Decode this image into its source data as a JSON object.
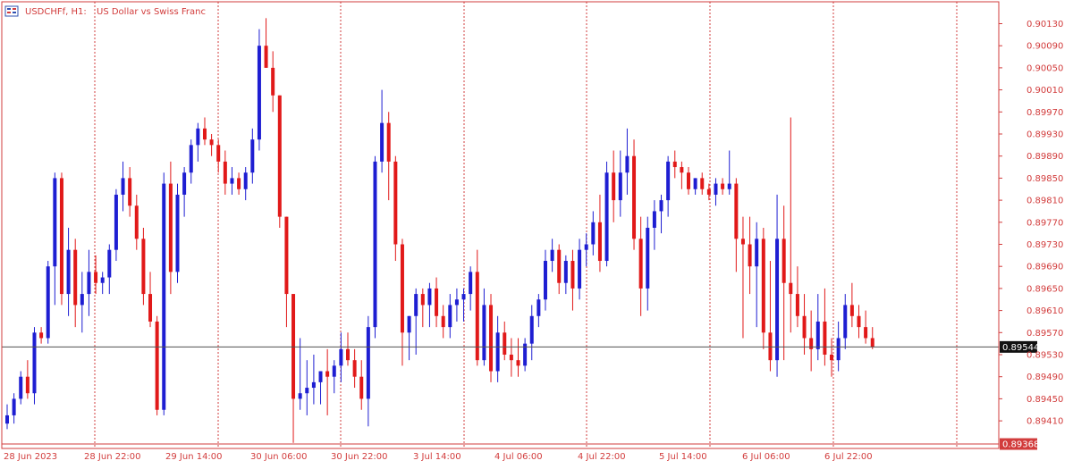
{
  "header": {
    "symbol_timeframe": "USDCHFf, H1:",
    "description": "US Dollar vs Swiss Franc"
  },
  "price_labels": {
    "current": "0.89544",
    "lower": "0.89368"
  },
  "colors": {
    "bull": "#1e1ed2",
    "bear": "#e11919",
    "grid": "#d23c3c",
    "frame": "#d23c3c",
    "text": "#d23c3c",
    "current_line": "#505050",
    "current_label_bg": "#111111",
    "lower_label_bg": "#d23c3c"
  },
  "chart_data": {
    "type": "candlestick",
    "symbol": "USDCHFf",
    "timeframe": "H1",
    "ylim": [
      0.8935,
      0.9015
    ],
    "y_ticks": [
      "0.90130",
      "0.90090",
      "0.90050",
      "0.90010",
      "0.89970",
      "0.89930",
      "0.89890",
      "0.89850",
      "0.89810",
      "0.89770",
      "0.89730",
      "0.89690",
      "0.89650",
      "0.89610",
      "0.89570",
      "0.89530",
      "0.89490",
      "0.89450",
      "0.89410"
    ],
    "x_labels": [
      "28 Jun 2023",
      "28 Jun 22:00",
      "29 Jun 14:00",
      "30 Jun 06:00",
      "30 Jun 22:00",
      "3 Jul 14:00",
      "4 Jul 06:00",
      "4 Jul 22:00",
      "5 Jul 14:00",
      "6 Jul 06:00",
      "6 Jul 22:00"
    ],
    "grid": true,
    "current_price": 0.89544,
    "lower_level": 0.89368,
    "candles": [
      [
        0.89405,
        0.8944,
        0.89395,
        0.8942
      ],
      [
        0.8942,
        0.8946,
        0.89405,
        0.8945
      ],
      [
        0.8945,
        0.895,
        0.8944,
        0.8949
      ],
      [
        0.8949,
        0.8952,
        0.8945,
        0.8946
      ],
      [
        0.8946,
        0.8958,
        0.8944,
        0.8957
      ],
      [
        0.8957,
        0.8958,
        0.8955,
        0.8956
      ],
      [
        0.8956,
        0.897,
        0.8955,
        0.8969
      ],
      [
        0.8969,
        0.8986,
        0.8962,
        0.8985
      ],
      [
        0.8985,
        0.8986,
        0.8962,
        0.8964
      ],
      [
        0.8964,
        0.8976,
        0.896,
        0.8972
      ],
      [
        0.8972,
        0.8974,
        0.8958,
        0.8962
      ],
      [
        0.8962,
        0.8968,
        0.8957,
        0.8964
      ],
      [
        0.8964,
        0.8972,
        0.896,
        0.8968
      ],
      [
        0.8968,
        0.8971,
        0.8964,
        0.8966
      ],
      [
        0.8966,
        0.8968,
        0.8964,
        0.8967
      ],
      [
        0.8967,
        0.8973,
        0.8964,
        0.8972
      ],
      [
        0.8972,
        0.8983,
        0.897,
        0.8982
      ],
      [
        0.8982,
        0.8988,
        0.8979,
        0.8985
      ],
      [
        0.8985,
        0.8987,
        0.8978,
        0.898
      ],
      [
        0.898,
        0.8982,
        0.8972,
        0.8974
      ],
      [
        0.8974,
        0.8976,
        0.8962,
        0.8964
      ],
      [
        0.8964,
        0.8968,
        0.8958,
        0.8959
      ],
      [
        0.8959,
        0.896,
        0.8942,
        0.8943
      ],
      [
        0.8943,
        0.8986,
        0.8942,
        0.8984
      ],
      [
        0.8984,
        0.8988,
        0.8964,
        0.8968
      ],
      [
        0.8968,
        0.8984,
        0.8966,
        0.8982
      ],
      [
        0.8982,
        0.8987,
        0.8978,
        0.8986
      ],
      [
        0.8986,
        0.8992,
        0.8984,
        0.8991
      ],
      [
        0.8991,
        0.8995,
        0.8988,
        0.8994
      ],
      [
        0.8994,
        0.8996,
        0.8991,
        0.8992
      ],
      [
        0.8992,
        0.8993,
        0.8989,
        0.8991
      ],
      [
        0.8991,
        0.8992,
        0.8986,
        0.8988
      ],
      [
        0.8988,
        0.899,
        0.8982,
        0.8984
      ],
      [
        0.8984,
        0.8987,
        0.8982,
        0.8985
      ],
      [
        0.8985,
        0.8986,
        0.8982,
        0.8983
      ],
      [
        0.8983,
        0.8987,
        0.8981,
        0.8986
      ],
      [
        0.8986,
        0.8994,
        0.8984,
        0.8992
      ],
      [
        0.8992,
        0.9012,
        0.899,
        0.9009
      ],
      [
        0.9009,
        0.9014,
        0.9005,
        0.9005
      ],
      [
        0.9005,
        0.9008,
        0.8997,
        0.9
      ],
      [
        0.9,
        0.9,
        0.8976,
        0.8978
      ],
      [
        0.8978,
        0.8978,
        0.8958,
        0.8964
      ],
      [
        0.8964,
        0.8964,
        0.8937,
        0.8945
      ],
      [
        0.8945,
        0.8956,
        0.8943,
        0.8946
      ],
      [
        0.8946,
        0.8952,
        0.8942,
        0.8947
      ],
      [
        0.8947,
        0.8953,
        0.8944,
        0.8948
      ],
      [
        0.8948,
        0.895,
        0.8944,
        0.895
      ],
      [
        0.895,
        0.8954,
        0.8942,
        0.8949
      ],
      [
        0.8949,
        0.8952,
        0.8946,
        0.8951
      ],
      [
        0.8951,
        0.8957,
        0.8948,
        0.8954
      ],
      [
        0.8954,
        0.8957,
        0.8951,
        0.8952
      ],
      [
        0.8952,
        0.8954,
        0.8947,
        0.8949
      ],
      [
        0.8949,
        0.8952,
        0.8943,
        0.8945
      ],
      [
        0.8945,
        0.896,
        0.894,
        0.8958
      ],
      [
        0.8958,
        0.8989,
        0.8956,
        0.8988
      ],
      [
        0.8988,
        0.9001,
        0.8986,
        0.8995
      ],
      [
        0.8995,
        0.8997,
        0.8981,
        0.8988
      ],
      [
        0.8988,
        0.8989,
        0.897,
        0.8973
      ],
      [
        0.8973,
        0.8974,
        0.8951,
        0.8957
      ],
      [
        0.8957,
        0.896,
        0.8952,
        0.896
      ],
      [
        0.896,
        0.8965,
        0.8953,
        0.8964
      ],
      [
        0.8964,
        0.8965,
        0.8958,
        0.8962
      ],
      [
        0.8962,
        0.8966,
        0.8958,
        0.8965
      ],
      [
        0.8965,
        0.8967,
        0.8958,
        0.896
      ],
      [
        0.896,
        0.8962,
        0.8956,
        0.8958
      ],
      [
        0.8958,
        0.8964,
        0.8956,
        0.8962
      ],
      [
        0.8962,
        0.8965,
        0.8959,
        0.8963
      ],
      [
        0.8963,
        0.8965,
        0.8959,
        0.8964
      ],
      [
        0.8964,
        0.8969,
        0.8961,
        0.8968
      ],
      [
        0.8968,
        0.8972,
        0.8951,
        0.8952
      ],
      [
        0.8952,
        0.8965,
        0.8951,
        0.8962
      ],
      [
        0.8962,
        0.8964,
        0.8948,
        0.895
      ],
      [
        0.895,
        0.896,
        0.8948,
        0.8957
      ],
      [
        0.8957,
        0.8959,
        0.8952,
        0.8953
      ],
      [
        0.8953,
        0.8956,
        0.8949,
        0.8952
      ],
      [
        0.8952,
        0.8956,
        0.8949,
        0.8951
      ],
      [
        0.8951,
        0.8956,
        0.895,
        0.8955
      ],
      [
        0.8955,
        0.8962,
        0.8952,
        0.896
      ],
      [
        0.896,
        0.8964,
        0.8958,
        0.8963
      ],
      [
        0.8963,
        0.8972,
        0.8961,
        0.897
      ],
      [
        0.897,
        0.8974,
        0.8968,
        0.8972
      ],
      [
        0.8972,
        0.8973,
        0.8964,
        0.8966
      ],
      [
        0.8966,
        0.8971,
        0.8964,
        0.897
      ],
      [
        0.897,
        0.8972,
        0.8961,
        0.8965
      ],
      [
        0.8965,
        0.8974,
        0.8963,
        0.8972
      ],
      [
        0.8972,
        0.8975,
        0.8969,
        0.8973
      ],
      [
        0.8973,
        0.8979,
        0.8971,
        0.8977
      ],
      [
        0.8977,
        0.8982,
        0.8968,
        0.897
      ],
      [
        0.897,
        0.8988,
        0.8969,
        0.8986
      ],
      [
        0.8986,
        0.899,
        0.8977,
        0.8981
      ],
      [
        0.8981,
        0.899,
        0.8978,
        0.8986
      ],
      [
        0.8986,
        0.8994,
        0.8982,
        0.8989
      ],
      [
        0.8989,
        0.8992,
        0.8972,
        0.8974
      ],
      [
        0.8974,
        0.8978,
        0.896,
        0.8965
      ],
      [
        0.8965,
        0.8978,
        0.8961,
        0.8976
      ],
      [
        0.8976,
        0.8981,
        0.8972,
        0.8979
      ],
      [
        0.8979,
        0.8982,
        0.8975,
        0.8981
      ],
      [
        0.8981,
        0.8989,
        0.8978,
        0.8988
      ],
      [
        0.8988,
        0.899,
        0.8985,
        0.8987
      ],
      [
        0.8987,
        0.8988,
        0.8983,
        0.8986
      ],
      [
        0.8986,
        0.8987,
        0.8982,
        0.8983
      ],
      [
        0.8983,
        0.8985,
        0.8982,
        0.8985
      ],
      [
        0.8985,
        0.8986,
        0.8982,
        0.8983
      ],
      [
        0.8983,
        0.8984,
        0.8981,
        0.8982
      ],
      [
        0.8982,
        0.8985,
        0.898,
        0.8984
      ],
      [
        0.8984,
        0.8985,
        0.8982,
        0.8983
      ],
      [
        0.8983,
        0.899,
        0.8982,
        0.8984
      ],
      [
        0.8984,
        0.8985,
        0.8968,
        0.8974
      ],
      [
        0.8974,
        0.8978,
        0.8956,
        0.8973
      ],
      [
        0.8973,
        0.8978,
        0.8964,
        0.8969
      ],
      [
        0.8969,
        0.8977,
        0.8958,
        0.8974
      ],
      [
        0.8974,
        0.8976,
        0.8954,
        0.8957
      ],
      [
        0.8957,
        0.897,
        0.895,
        0.8952
      ],
      [
        0.8952,
        0.8982,
        0.8949,
        0.8974
      ],
      [
        0.8974,
        0.898,
        0.8952,
        0.8966
      ],
      [
        0.8966,
        0.8996,
        0.8957,
        0.8964
      ],
      [
        0.8964,
        0.8969,
        0.8958,
        0.896
      ],
      [
        0.896,
        0.8964,
        0.8953,
        0.8956
      ],
      [
        0.8956,
        0.8961,
        0.895,
        0.8954
      ],
      [
        0.8954,
        0.8964,
        0.8952,
        0.8959
      ],
      [
        0.8959,
        0.8965,
        0.8951,
        0.8953
      ],
      [
        0.8953,
        0.8956,
        0.8949,
        0.8952
      ],
      [
        0.8952,
        0.8959,
        0.895,
        0.8956
      ],
      [
        0.8956,
        0.8964,
        0.8954,
        0.8962
      ],
      [
        0.8962,
        0.8966,
        0.8958,
        0.896
      ],
      [
        0.896,
        0.8962,
        0.8956,
        0.8958
      ],
      [
        0.8958,
        0.8961,
        0.8955,
        0.8956
      ],
      [
        0.8956,
        0.8958,
        0.8954,
        0.89544
      ]
    ]
  }
}
